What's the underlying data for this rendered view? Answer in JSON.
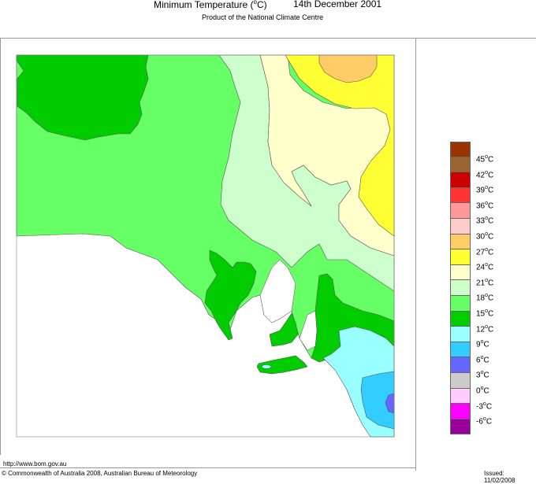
{
  "header": {
    "title": "Minimum Temperature",
    "unit_open": " (",
    "unit_deg": "o",
    "unit_close": "C)",
    "date": "14th December 2001",
    "subtitle": "Product of the National Climate Centre"
  },
  "footer": {
    "url": "http://www.bom.gov.au",
    "copyright": "© Commonwealth of Australia 2008, Australian Bureau of Meteorology",
    "issued": "Issued: 11/02/2008"
  },
  "legend": {
    "colors": [
      "#993300",
      "#996633",
      "#cc0000",
      "#ff3333",
      "#ff9999",
      "#ffcccc",
      "#ffcc66",
      "#ffff33",
      "#ffffcc",
      "#ccffcc",
      "#66ff66",
      "#00cc00",
      "#99ffff",
      "#33ccff",
      "#6666ff",
      "#cccccc",
      "#ffccff",
      "#ff00ff",
      "#990099"
    ],
    "labels": [
      {
        "v": "45",
        "u": "C"
      },
      {
        "v": "42",
        "u": "C"
      },
      {
        "v": "39",
        "u": "C"
      },
      {
        "v": "36",
        "u": "C"
      },
      {
        "v": "33",
        "u": "C"
      },
      {
        "v": "30",
        "u": "C"
      },
      {
        "v": "27",
        "u": "C"
      },
      {
        "v": "24",
        "u": "C"
      },
      {
        "v": "21",
        "u": "C"
      },
      {
        "v": "18",
        "u": "C"
      },
      {
        "v": "15",
        "u": "C"
      },
      {
        "v": "12",
        "u": "C"
      },
      {
        "v": "9",
        "u": "C"
      },
      {
        "v": "6",
        "u": "C"
      },
      {
        "v": "3",
        "u": "C"
      },
      {
        "v": "0",
        "u": "C"
      },
      {
        "v": "-3",
        "u": "C"
      },
      {
        "v": "-6",
        "u": "C"
      }
    ]
  },
  "map": {
    "region": "South Australia",
    "variable": "Minimum Temperature (°C)",
    "bands_present": [
      "27-30",
      "24-27",
      "21-24",
      "18-21",
      "15-18",
      "12-15",
      "9-12",
      "6-9",
      "3-6"
    ]
  }
}
